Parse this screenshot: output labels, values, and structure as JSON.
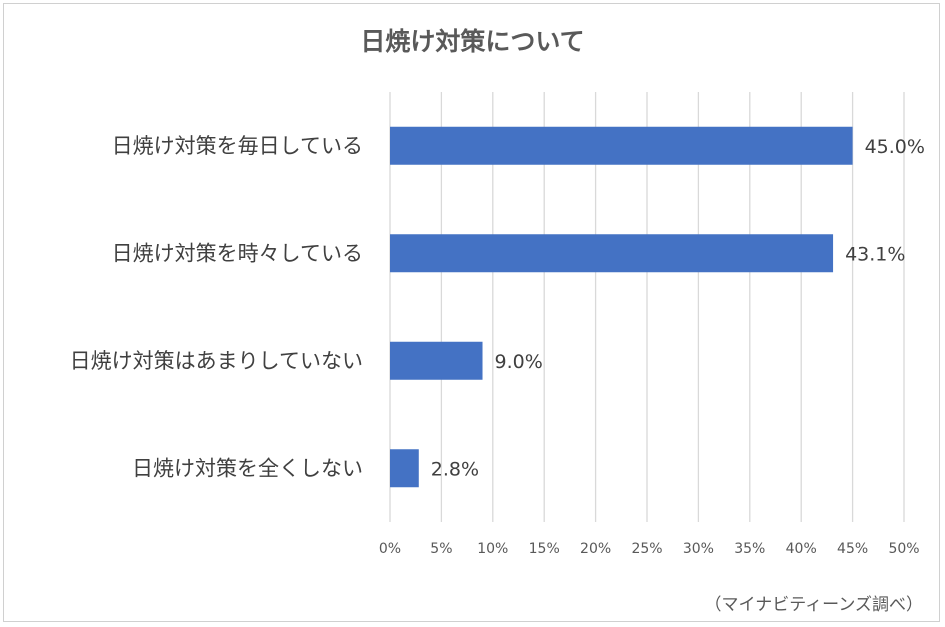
{
  "chart_data": {
    "type": "bar",
    "orientation": "horizontal",
    "title": "日焼け対策について",
    "categories": [
      "日焼け対策を毎日している",
      "日焼け対策を時々している",
      "日焼け対策はあまりしていない",
      "日焼け対策を全くしない"
    ],
    "values": [
      45.0,
      43.1,
      9.0,
      2.8
    ],
    "data_labels": [
      "45.0%",
      "43.1%",
      "9.0%",
      "2.8%"
    ],
    "xlim": [
      0,
      50
    ],
    "xticks": [
      0,
      5,
      10,
      15,
      20,
      25,
      30,
      35,
      40,
      45,
      50
    ],
    "xtick_labels": [
      "0%",
      "5%",
      "10%",
      "15%",
      "20%",
      "25%",
      "30%",
      "35%",
      "40%",
      "45%",
      "50%"
    ],
    "grid": "vertical",
    "bar_color": "#4472C4",
    "grid_color": "#d9d9d9",
    "source": "（マイナビティーンズ調べ）"
  }
}
